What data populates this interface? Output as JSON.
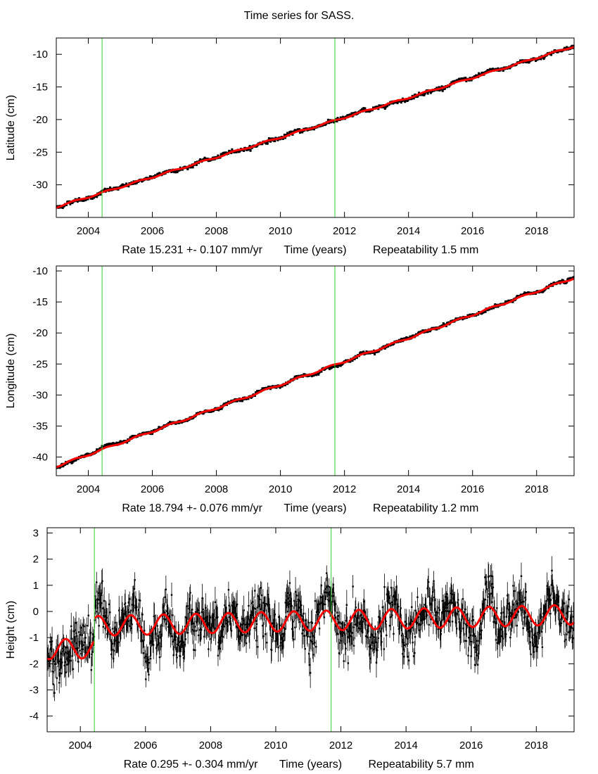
{
  "title": "Time series for SASS.",
  "colors": {
    "data": "#000000",
    "fit": "#ff0000",
    "event_line": "#33cc33",
    "frame": "#000000"
  },
  "chart_data": [
    {
      "type": "scatter",
      "ylabel": "Latitude (cm)",
      "xlabel": "Time (years)",
      "rate_label": "Rate 15.231 +- 0.107 mm/yr",
      "repeat_label": "Repeatability 1.5 mm",
      "xlim": [
        2003.0,
        2019.17
      ],
      "ylim": [
        -35.0,
        -7.5
      ],
      "xticks": [
        "2004",
        "2006",
        "2008",
        "2010",
        "2012",
        "2014",
        "2016",
        "2018"
      ],
      "yticks": [
        "-10",
        "-15",
        "-20",
        "-25",
        "-30"
      ],
      "event_lines": [
        2004.43,
        2011.7
      ],
      "fit": {
        "start_value": -33.4,
        "rate_cm_per_yr": 1.5231,
        "annual_amp": 0.12,
        "noise": 0.18
      },
      "error_bars": false
    },
    {
      "type": "scatter",
      "ylabel": "Longitude (cm)",
      "xlabel": "Time (years)",
      "rate_label": "Rate 18.794 +- 0.076 mm/yr",
      "repeat_label": "Repeatability 1.2 mm",
      "xlim": [
        2003.0,
        2019.17
      ],
      "ylim": [
        -43.0,
        -9.2
      ],
      "xticks": [
        "2004",
        "2006",
        "2008",
        "2010",
        "2012",
        "2014",
        "2016",
        "2018"
      ],
      "yticks": [
        "-10",
        "-15",
        "-20",
        "-25",
        "-30",
        "-35",
        "-40"
      ],
      "event_lines": [
        2004.43,
        2011.7
      ],
      "fit": {
        "start_value": -41.5,
        "rate_cm_per_yr": 1.8794,
        "annual_amp": 0.15,
        "noise": 0.15
      },
      "error_bars": false
    },
    {
      "type": "scatter",
      "ylabel": "Height (cm)",
      "xlabel": "Time (years)",
      "rate_label": "Rate 0.295 +- 0.304 mm/yr",
      "repeat_label": "Repeatability 5.7 mm",
      "xlim": [
        2002.98,
        2019.16
      ],
      "ylim": [
        -4.6,
        3.2
      ],
      "xticks": [
        "2004",
        "2006",
        "2008",
        "2010",
        "2012",
        "2014",
        "2016",
        "2018"
      ],
      "yticks": [
        "3",
        "2",
        "1",
        "0",
        "-1",
        "-2",
        "-3",
        "-4"
      ],
      "event_lines": [
        2004.43,
        2011.7
      ],
      "fit": {
        "start_value": -1.45,
        "offset_after_first_event": 0.85,
        "rate_cm_per_yr": 0.0295,
        "annual_amp": 0.38,
        "noise": 0.5
      },
      "error_bars": true
    }
  ]
}
